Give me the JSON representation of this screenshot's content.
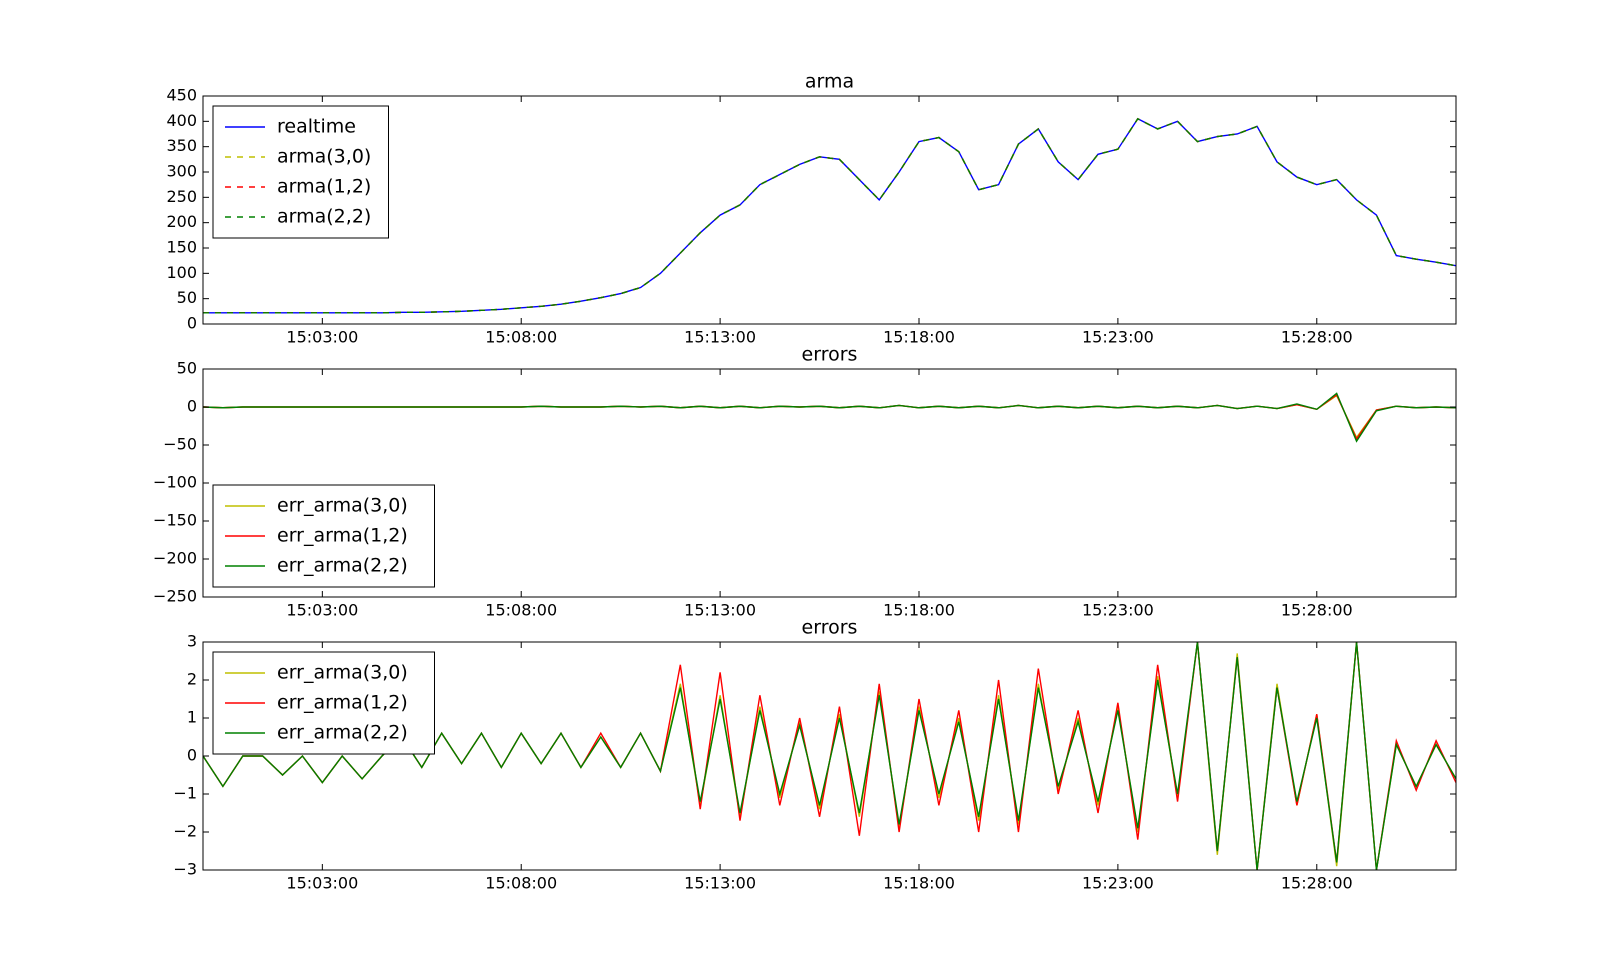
{
  "chart_data": [
    {
      "type": "line",
      "title": "arma",
      "legend": "upper left",
      "x": [
        "15:00:00",
        "15:00:30",
        "15:01:00",
        "15:01:30",
        "15:02:00",
        "15:02:30",
        "15:03:00",
        "15:03:30",
        "15:04:00",
        "15:04:30",
        "15:05:00",
        "15:05:30",
        "15:06:00",
        "15:06:30",
        "15:07:00",
        "15:07:30",
        "15:08:00",
        "15:08:30",
        "15:09:00",
        "15:09:30",
        "15:10:00",
        "15:10:30",
        "15:11:00",
        "15:11:30",
        "15:12:00",
        "15:12:30",
        "15:13:00",
        "15:13:30",
        "15:14:00",
        "15:14:30",
        "15:15:00",
        "15:15:30",
        "15:16:00",
        "15:16:30",
        "15:17:00",
        "15:17:30",
        "15:18:00",
        "15:18:30",
        "15:19:00",
        "15:19:30",
        "15:20:00",
        "15:20:30",
        "15:21:00",
        "15:21:30",
        "15:22:00",
        "15:22:30",
        "15:23:00",
        "15:23:30",
        "15:24:00",
        "15:24:30",
        "15:25:00",
        "15:25:30",
        "15:26:00",
        "15:26:30",
        "15:27:00",
        "15:27:30",
        "15:28:00",
        "15:28:30",
        "15:29:00",
        "15:29:30",
        "15:30:00",
        "15:30:30",
        "15:31:00",
        "15:31:30"
      ],
      "xlim": [
        "15:00:00",
        "15:31:30"
      ],
      "xticks": [
        "15:03:00",
        "15:08:00",
        "15:13:00",
        "15:18:00",
        "15:23:00",
        "15:28:00"
      ],
      "ylim": [
        0,
        450
      ],
      "yticks": [
        0,
        50,
        100,
        150,
        200,
        250,
        300,
        350,
        400,
        450
      ],
      "series": [
        {
          "name": "realtime",
          "color": "#0000ff",
          "linestyle": "solid",
          "values": [
            22,
            22,
            22,
            22,
            22,
            22,
            22,
            22,
            22,
            22,
            23,
            23,
            24,
            25,
            27,
            29,
            32,
            35,
            39,
            45,
            52,
            60,
            72,
            100,
            140,
            180,
            215,
            235,
            275,
            295,
            315,
            330,
            325,
            285,
            245,
            300,
            360,
            368,
            340,
            265,
            275,
            355,
            385,
            320,
            285,
            335,
            345,
            405,
            385,
            400,
            360,
            370,
            375,
            390,
            320,
            290,
            275,
            285,
            245,
            215,
            135,
            128,
            122,
            115
          ]
        },
        {
          "name": "arma(3,0)",
          "color": "#bfbf00",
          "linestyle": "dashed",
          "values": [
            22,
            22,
            22,
            22,
            22,
            22,
            22,
            22,
            22,
            22,
            23,
            23,
            24,
            25,
            27,
            29,
            32,
            35,
            39,
            45,
            52,
            60,
            72,
            100,
            140,
            180,
            215,
            235,
            275,
            295,
            315,
            330,
            325,
            285,
            245,
            300,
            360,
            368,
            340,
            265,
            275,
            355,
            385,
            320,
            285,
            335,
            345,
            405,
            385,
            400,
            360,
            370,
            375,
            390,
            320,
            290,
            275,
            285,
            245,
            215,
            135,
            128,
            122,
            115
          ]
        },
        {
          "name": "arma(1,2)",
          "color": "#ff0000",
          "linestyle": "dashed",
          "values": [
            22,
            22,
            22,
            22,
            22,
            22,
            22,
            22,
            22,
            22,
            23,
            23,
            24,
            25,
            27,
            29,
            32,
            35,
            39,
            45,
            52,
            60,
            72,
            100,
            140,
            180,
            215,
            235,
            275,
            295,
            315,
            330,
            325,
            285,
            245,
            300,
            360,
            368,
            340,
            265,
            275,
            355,
            385,
            320,
            285,
            335,
            345,
            405,
            385,
            400,
            360,
            370,
            375,
            390,
            320,
            290,
            275,
            285,
            245,
            215,
            135,
            128,
            122,
            115
          ]
        },
        {
          "name": "arma(2,2)",
          "color": "#008000",
          "linestyle": "dashed",
          "values": [
            22,
            22,
            22,
            22,
            22,
            22,
            22,
            22,
            22,
            22,
            23,
            23,
            24,
            25,
            27,
            29,
            32,
            35,
            39,
            45,
            52,
            60,
            72,
            100,
            140,
            180,
            215,
            235,
            275,
            295,
            315,
            330,
            325,
            285,
            245,
            300,
            360,
            368,
            340,
            265,
            275,
            355,
            385,
            320,
            285,
            335,
            345,
            405,
            385,
            400,
            360,
            370,
            375,
            390,
            320,
            290,
            275,
            285,
            245,
            215,
            135,
            128,
            122,
            115
          ]
        }
      ]
    },
    {
      "type": "line",
      "title": "errors",
      "legend": "lower left",
      "x": [
        "15:00:00",
        "15:00:30",
        "15:01:00",
        "15:01:30",
        "15:02:00",
        "15:02:30",
        "15:03:00",
        "15:03:30",
        "15:04:00",
        "15:04:30",
        "15:05:00",
        "15:05:30",
        "15:06:00",
        "15:06:30",
        "15:07:00",
        "15:07:30",
        "15:08:00",
        "15:08:30",
        "15:09:00",
        "15:09:30",
        "15:10:00",
        "15:10:30",
        "15:11:00",
        "15:11:30",
        "15:12:00",
        "15:12:30",
        "15:13:00",
        "15:13:30",
        "15:14:00",
        "15:14:30",
        "15:15:00",
        "15:15:30",
        "15:16:00",
        "15:16:30",
        "15:17:00",
        "15:17:30",
        "15:18:00",
        "15:18:30",
        "15:19:00",
        "15:19:30",
        "15:20:00",
        "15:20:30",
        "15:21:00",
        "15:21:30",
        "15:22:00",
        "15:22:30",
        "15:23:00",
        "15:23:30",
        "15:24:00",
        "15:24:30",
        "15:25:00",
        "15:25:30",
        "15:26:00",
        "15:26:30",
        "15:27:00",
        "15:27:30",
        "15:28:00",
        "15:28:30",
        "15:29:00",
        "15:29:30",
        "15:30:00",
        "15:30:30",
        "15:31:00",
        "15:31:30"
      ],
      "xlim": [
        "15:00:00",
        "15:31:30"
      ],
      "xticks": [
        "15:03:00",
        "15:08:00",
        "15:13:00",
        "15:18:00",
        "15:23:00",
        "15:28:00"
      ],
      "ylim": [
        -250,
        50
      ],
      "yticks": [
        {
          "value": -250,
          "label": "−250"
        },
        {
          "value": -200,
          "label": "−200"
        },
        {
          "value": -150,
          "label": "−150"
        },
        {
          "value": -100,
          "label": "−100"
        },
        {
          "value": -50,
          "label": "−50"
        },
        0,
        50
      ],
      "series": [
        {
          "name": "err_arma(3,0)",
          "color": "#bfbf00",
          "linestyle": "solid",
          "values": [
            0,
            -1,
            0,
            0,
            0,
            0,
            0,
            0,
            0,
            0,
            0,
            0,
            0,
            0,
            0,
            0,
            0,
            1,
            0,
            0,
            0,
            1,
            0,
            1,
            -1,
            1,
            -1,
            1,
            -1,
            1,
            0,
            1,
            -1,
            1,
            -1,
            2,
            -1,
            1,
            -1,
            1,
            -1,
            2,
            -1,
            1,
            -1,
            1,
            -1,
            1,
            -1,
            1,
            -1,
            2,
            -2,
            1,
            -2,
            3,
            -3,
            15,
            -40,
            -4,
            1,
            -1,
            0,
            -1
          ]
        },
        {
          "name": "err_arma(1,2)",
          "color": "#ff0000",
          "linestyle": "solid",
          "values": [
            0,
            -1,
            0,
            0,
            0,
            0,
            0,
            0,
            0,
            0,
            0,
            0,
            0,
            0,
            0,
            0,
            0,
            1,
            0,
            0,
            0,
            1,
            0,
            1,
            -1,
            1,
            -1,
            1,
            -1,
            1,
            0,
            1,
            -1,
            1,
            -1,
            2,
            -1,
            1,
            -1,
            1,
            -1,
            2,
            -1,
            1,
            -1,
            1,
            -1,
            1,
            -1,
            1,
            -1,
            2,
            -2,
            1,
            -2,
            3,
            -3,
            16,
            -42,
            -4,
            1,
            -1,
            0,
            -1
          ]
        },
        {
          "name": "err_arma(2,2)",
          "color": "#008000",
          "linestyle": "solid",
          "values": [
            0,
            -1,
            0,
            0,
            0,
            0,
            0,
            0,
            0,
            0,
            0,
            0,
            0,
            0,
            0,
            0,
            0,
            1,
            0,
            0,
            0,
            1,
            0,
            1,
            -1,
            1,
            -1,
            1,
            -1,
            1,
            0,
            1,
            -1,
            1,
            -1,
            2,
            -1,
            1,
            -1,
            1,
            -1,
            2,
            -1,
            1,
            -1,
            1,
            -1,
            1,
            -1,
            1,
            -1,
            2,
            -2,
            1,
            -2,
            4,
            -3,
            18,
            -45,
            -5,
            1,
            -1,
            0,
            -1
          ]
        }
      ]
    },
    {
      "type": "line",
      "title": "errors",
      "legend": "upper left",
      "x": [
        "15:00:00",
        "15:00:30",
        "15:01:00",
        "15:01:30",
        "15:02:00",
        "15:02:30",
        "15:03:00",
        "15:03:30",
        "15:04:00",
        "15:04:30",
        "15:05:00",
        "15:05:30",
        "15:06:00",
        "15:06:30",
        "15:07:00",
        "15:07:30",
        "15:08:00",
        "15:08:30",
        "15:09:00",
        "15:09:30",
        "15:10:00",
        "15:10:30",
        "15:11:00",
        "15:11:30",
        "15:12:00",
        "15:12:30",
        "15:13:00",
        "15:13:30",
        "15:14:00",
        "15:14:30",
        "15:15:00",
        "15:15:30",
        "15:16:00",
        "15:16:30",
        "15:17:00",
        "15:17:30",
        "15:18:00",
        "15:18:30",
        "15:19:00",
        "15:19:30",
        "15:20:00",
        "15:20:30",
        "15:21:00",
        "15:21:30",
        "15:22:00",
        "15:22:30",
        "15:23:00",
        "15:23:30",
        "15:24:00",
        "15:24:30",
        "15:25:00",
        "15:25:30",
        "15:26:00",
        "15:26:30",
        "15:27:00",
        "15:27:30",
        "15:28:00",
        "15:28:30",
        "15:29:00",
        "15:29:30",
        "15:30:00",
        "15:30:30",
        "15:31:00",
        "15:31:30"
      ],
      "xlim": [
        "15:00:00",
        "15:31:30"
      ],
      "xticks": [
        "15:03:00",
        "15:08:00",
        "15:13:00",
        "15:18:00",
        "15:23:00",
        "15:28:00"
      ],
      "ylim": [
        -3,
        3
      ],
      "yticks": [
        {
          "value": -3,
          "label": "−3"
        },
        {
          "value": -2,
          "label": "−2"
        },
        {
          "value": -1,
          "label": "−1"
        },
        0,
        1,
        2,
        3
      ],
      "series": [
        {
          "name": "err_arma(3,0)",
          "color": "#bfbf00",
          "linestyle": "solid",
          "values": [
            0,
            -0.8,
            0,
            0,
            -0.5,
            0,
            -0.7,
            0,
            -0.6,
            0,
            0.5,
            -0.3,
            0.6,
            -0.2,
            0.6,
            -0.3,
            0.6,
            -0.2,
            0.6,
            -0.3,
            0.5,
            -0.3,
            0.6,
            -0.4,
            1.9,
            -1.3,
            1.6,
            -1.6,
            1.3,
            -1.1,
            0.9,
            -1.4,
            1.1,
            -1.6,
            1.7,
            -1.9,
            1.3,
            -1.1,
            1.0,
            -1.7,
            1.6,
            -1.8,
            1.9,
            -0.9,
            1.0,
            -1.3,
            1.3,
            -2.0,
            2.1,
            -1.1,
            3.0,
            -2.6,
            2.7,
            -3.0,
            1.9,
            -1.3,
            1.1,
            -2.9,
            3.0,
            -3.0,
            0.3,
            -0.8,
            0.3,
            -0.6
          ]
        },
        {
          "name": "err_arma(1,2)",
          "color": "#ff0000",
          "linestyle": "solid",
          "values": [
            0,
            -0.8,
            0,
            0,
            -0.5,
            0,
            -0.7,
            0,
            -0.6,
            0,
            0.5,
            -0.3,
            0.6,
            -0.2,
            0.6,
            -0.3,
            0.6,
            -0.2,
            0.6,
            -0.3,
            0.6,
            -0.3,
            0.6,
            -0.4,
            2.4,
            -1.4,
            2.2,
            -1.7,
            1.6,
            -1.3,
            1.0,
            -1.6,
            1.3,
            -2.1,
            1.9,
            -2.0,
            1.5,
            -1.3,
            1.2,
            -2.0,
            2.0,
            -2.0,
            2.3,
            -1.0,
            1.2,
            -1.5,
            1.4,
            -2.2,
            2.4,
            -1.2,
            3.0,
            -2.5,
            2.6,
            -3.0,
            1.8,
            -1.3,
            1.1,
            -2.8,
            3.0,
            -3.0,
            0.4,
            -0.9,
            0.4,
            -0.7
          ]
        },
        {
          "name": "err_arma(2,2)",
          "color": "#008000",
          "linestyle": "solid",
          "values": [
            0,
            -0.8,
            0,
            0,
            -0.5,
            0,
            -0.7,
            0,
            -0.6,
            0,
            0.5,
            -0.3,
            0.6,
            -0.2,
            0.6,
            -0.3,
            0.6,
            -0.2,
            0.6,
            -0.3,
            0.5,
            -0.3,
            0.6,
            -0.4,
            1.8,
            -1.2,
            1.5,
            -1.5,
            1.2,
            -1.0,
            0.8,
            -1.3,
            1.0,
            -1.5,
            1.6,
            -1.8,
            1.2,
            -1.0,
            0.9,
            -1.6,
            1.5,
            -1.7,
            1.8,
            -0.8,
            0.9,
            -1.2,
            1.2,
            -1.9,
            2.0,
            -1.0,
            3.0,
            -2.5,
            2.6,
            -3.0,
            1.8,
            -1.2,
            1.0,
            -2.8,
            3.0,
            -3.0,
            0.3,
            -0.8,
            0.3,
            -0.6
          ]
        }
      ]
    }
  ]
}
